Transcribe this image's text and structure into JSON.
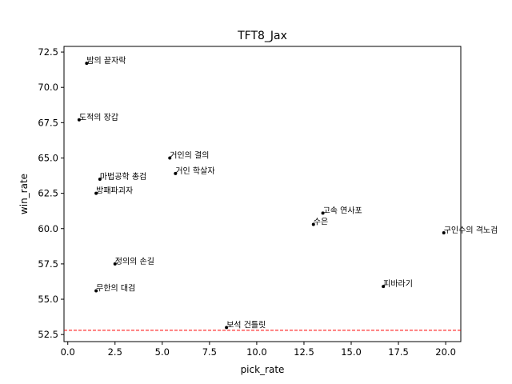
{
  "chart_data": {
    "type": "scatter",
    "title": "TFT8_Jax",
    "xlabel": "pick_rate",
    "ylabel": "win_rate",
    "xlim": [
      -0.2,
      20.8
    ],
    "ylim": [
      52.0,
      72.9
    ],
    "xticks": [
      0.0,
      2.5,
      5.0,
      7.5,
      10.0,
      12.5,
      15.0,
      17.5,
      20.0
    ],
    "yticks": [
      52.5,
      55.0,
      57.5,
      60.0,
      62.5,
      65.0,
      67.5,
      70.0,
      72.5
    ],
    "xtick_labels": [
      "0.0",
      "2.5",
      "5.0",
      "7.5",
      "10.0",
      "12.5",
      "15.0",
      "17.5",
      "20.0"
    ],
    "ytick_labels": [
      "52.5",
      "55.0",
      "57.5",
      "60.0",
      "62.5",
      "65.0",
      "67.5",
      "70.0",
      "72.5"
    ],
    "grid": false,
    "marker_color": "#000000",
    "reference_line": {
      "y": 52.8,
      "color": "#ff0000",
      "style": "dashed"
    },
    "points": [
      {
        "x": 1.0,
        "y": 71.7,
        "label": "밤의 끝자락"
      },
      {
        "x": 0.6,
        "y": 67.7,
        "label": "도적의 장갑"
      },
      {
        "x": 5.4,
        "y": 65.0,
        "label": "거인의 결의"
      },
      {
        "x": 5.7,
        "y": 63.9,
        "label": "거인 학살자"
      },
      {
        "x": 1.7,
        "y": 63.5,
        "label": "마법공학 총검"
      },
      {
        "x": 1.5,
        "y": 62.5,
        "label": "방패파괴자"
      },
      {
        "x": 13.5,
        "y": 61.1,
        "label": "고속 연사포"
      },
      {
        "x": 13.0,
        "y": 60.3,
        "label": "수은"
      },
      {
        "x": 19.9,
        "y": 59.7,
        "label": "구인수의 격노검"
      },
      {
        "x": 2.5,
        "y": 57.5,
        "label": "정의의 손길"
      },
      {
        "x": 16.7,
        "y": 55.9,
        "label": "피바라기"
      },
      {
        "x": 1.5,
        "y": 55.6,
        "label": "무한의 대검"
      },
      {
        "x": 8.4,
        "y": 53.0,
        "label": "보석 건틀릿"
      }
    ]
  }
}
